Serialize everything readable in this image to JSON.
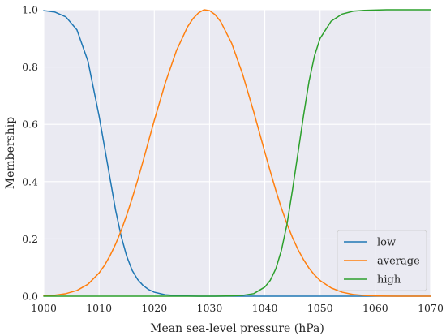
{
  "chart_data": {
    "type": "line",
    "xlabel": "Mean sea-level pressure (hPa)",
    "ylabel": "Membership",
    "xlim": [
      1000,
      1070
    ],
    "ylim": [
      0,
      1
    ],
    "x_ticks": [
      "1000",
      "1010",
      "1020",
      "1030",
      "1040",
      "1050",
      "1060",
      "1070"
    ],
    "y_ticks": [
      "0.0",
      "0.2",
      "0.4",
      "0.6",
      "0.8",
      "1.0"
    ],
    "grid": true,
    "legend_position": "lower-right",
    "background": "#eaeaf2",
    "x": [
      1000,
      1002,
      1004,
      1006,
      1008,
      1010,
      1011,
      1012,
      1013,
      1014,
      1015,
      1016,
      1017,
      1018,
      1019,
      1020,
      1022,
      1024,
      1026,
      1027,
      1028,
      1029,
      1030,
      1031,
      1032,
      1034,
      1036,
      1038,
      1040,
      1041,
      1042,
      1043,
      1044,
      1045,
      1046,
      1047,
      1048,
      1049,
      1050,
      1052,
      1054,
      1056,
      1058,
      1060,
      1062,
      1064,
      1066,
      1068,
      1070
    ],
    "series": [
      {
        "name": "low",
        "color": "#1f77b4",
        "values": [
          0.997,
          0.992,
          0.975,
          0.93,
          0.82,
          0.63,
          0.52,
          0.41,
          0.3,
          0.21,
          0.14,
          0.09,
          0.058,
          0.037,
          0.023,
          0.014,
          0.005,
          0.002,
          0.0006,
          0.0003,
          0.0001,
          0,
          0,
          0,
          0,
          0,
          0,
          0,
          0,
          0,
          0,
          0,
          0,
          0,
          0,
          0,
          0,
          0,
          0,
          0,
          0,
          0,
          0,
          0,
          0,
          0,
          0,
          0,
          0
        ]
      },
      {
        "name": "average",
        "color": "#ff7f0e",
        "values": [
          0.0013,
          0.0036,
          0.009,
          0.02,
          0.042,
          0.081,
          0.108,
          0.142,
          0.182,
          0.229,
          0.283,
          0.342,
          0.406,
          0.474,
          0.544,
          0.614,
          0.745,
          0.857,
          0.94,
          0.969,
          0.989,
          1.0,
          0.997,
          0.983,
          0.959,
          0.883,
          0.774,
          0.643,
          0.503,
          0.435,
          0.369,
          0.308,
          0.253,
          0.205,
          0.163,
          0.128,
          0.098,
          0.074,
          0.055,
          0.029,
          0.014,
          0.006,
          0.0025,
          0.001,
          0.0004,
          0.0001,
          0,
          0,
          0
        ]
      },
      {
        "name": "high",
        "color": "#2ca02c",
        "values": [
          0,
          0,
          0,
          0,
          0,
          0,
          0,
          0,
          0,
          0,
          0,
          0,
          0,
          0,
          0,
          0,
          0,
          0,
          0,
          0,
          0,
          0,
          0,
          0.0001,
          0.0003,
          0.0009,
          0.003,
          0.009,
          0.032,
          0.056,
          0.096,
          0.16,
          0.25,
          0.37,
          0.5,
          0.63,
          0.75,
          0.84,
          0.9,
          0.96,
          0.985,
          0.995,
          0.998,
          0.999,
          1.0,
          1.0,
          1.0,
          1.0,
          1.0
        ]
      }
    ]
  }
}
